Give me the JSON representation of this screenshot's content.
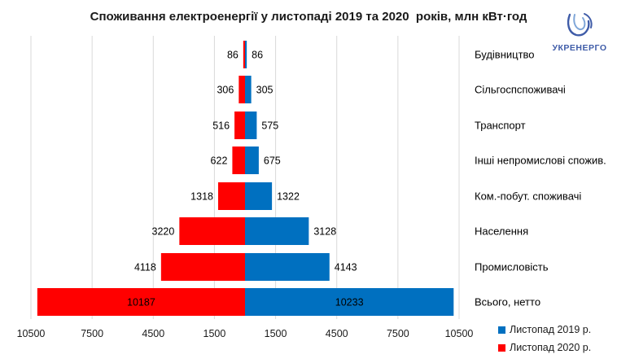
{
  "chart_data": {
    "type": "bar",
    "orientation": "horizontal-diverging",
    "title": "Споживання електроенергії у листопаді 2019 та 2020  років, млн кВт·год",
    "categories": [
      "Будівництво",
      "Сільгоспспоживачі",
      "Транспорт",
      "Інші непромислові спожив.",
      "Ком.-побут. споживачі",
      "Населення",
      "Промисловість",
      "Всього, нетто"
    ],
    "series": [
      {
        "name": "Листопад 2019 р.",
        "color": "#0070c0",
        "side": "right",
        "values": [
          86,
          305,
          575,
          675,
          1322,
          3128,
          4143,
          10233
        ],
        "labels": [
          "86",
          "305",
          "575",
          "675",
          "1322",
          "3128",
          "4143",
          "10233"
        ]
      },
      {
        "name": "Листопад 2020 р.",
        "color": "#ff0000",
        "side": "left",
        "values": [
          86,
          306,
          516,
          622,
          1318,
          3220,
          4118,
          10187
        ],
        "labels": [
          "86",
          "306",
          "516",
          "622",
          "1318",
          "3220",
          "4118",
          "10187"
        ]
      }
    ],
    "x_tick_labels": [
      "10500",
      "7500",
      "4500",
      "1500",
      "1500",
      "4500",
      "7500",
      "10500"
    ],
    "x_tick_values": [
      -10500,
      -7500,
      -4500,
      -1500,
      1500,
      4500,
      7500,
      10500
    ],
    "xlim": [
      -10500,
      10500
    ],
    "grid": "vertical",
    "legend_position": "bottom-right"
  },
  "logo": {
    "text": "УКРЕНЕРГО",
    "icon": "ukrenergo-logo-icon"
  }
}
